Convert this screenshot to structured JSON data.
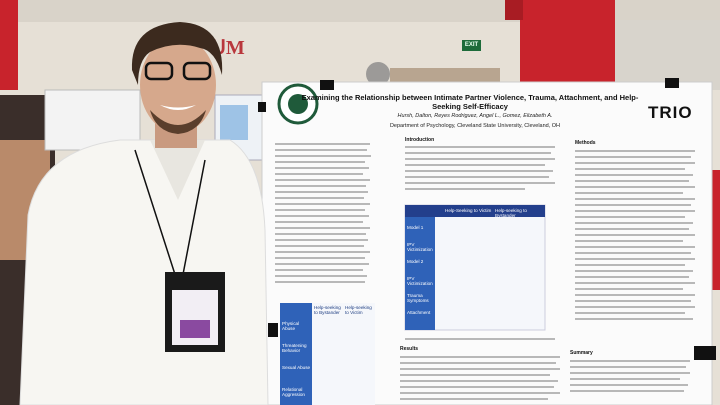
{
  "background": {
    "exit_sign": "EXIT"
  },
  "poster": {
    "title": "Examining the Relationship between Intimate Partner Violence, Trauma, Attachment, and Help-Seeking Self-Efficacy",
    "authors": "Hursh, Dalton, Reyes Rodriguez, Angel L., Gomez, Elizabeth A.",
    "affiliation": "Department of Psychology, Cleveland State University, Cleveland, OH",
    "logo": "TRIO",
    "sections": {
      "introduction": "Introduction",
      "methods": "Methods",
      "results": "Results",
      "summary": "Summary"
    },
    "left_table": {
      "headers": [
        "Help-seeking to Bystander",
        "Help-seeking to Victim"
      ],
      "rows": [
        "Physical Abuse",
        "Threatening Behavior",
        "Sexual Abuse",
        "Relational Aggression"
      ]
    },
    "right_table": {
      "headers": [
        "Help-Seeking to Victim",
        "Help-seeking to Bystander"
      ],
      "rows": [
        "Model 1",
        "IPV Victimization",
        "Model 2",
        "IPV Victimization",
        "Trauma Symptoms",
        "Attachment"
      ]
    }
  }
}
